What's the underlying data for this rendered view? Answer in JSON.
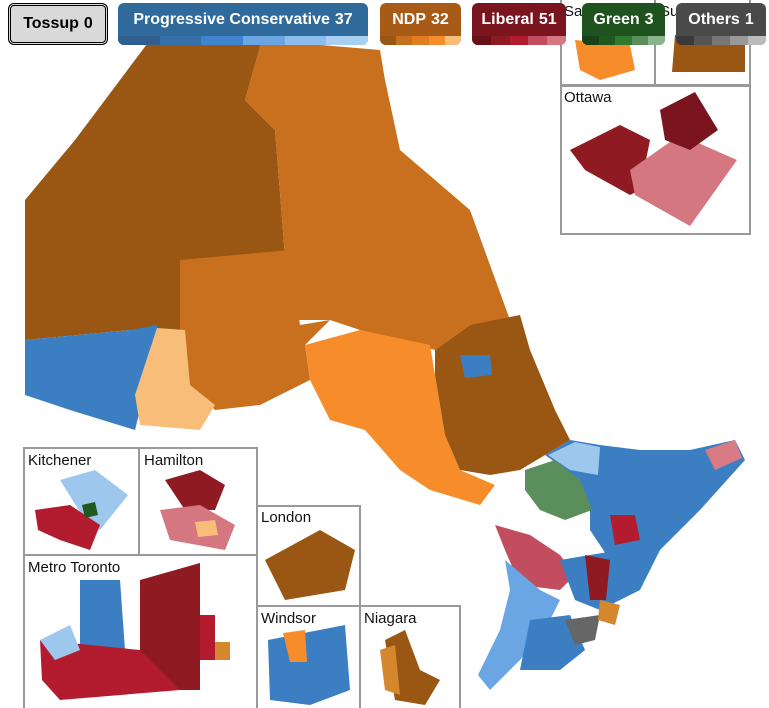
{
  "legend": [
    {
      "party": "Tossup",
      "seats": 0
    },
    {
      "party": "Progressive Conservative",
      "seats": 37
    },
    {
      "party": "NDP",
      "seats": 32
    },
    {
      "party": "Liberal",
      "seats": 51
    },
    {
      "party": "Green",
      "seats": 3
    },
    {
      "party": "Others",
      "seats": 1
    }
  ],
  "insets": [
    "Sault Ste. Marie",
    "Sudbury",
    "Ottawa",
    "Kitchener",
    "Hamilton",
    "Metro Toronto",
    "London",
    "Windsor",
    "Niagara"
  ]
}
